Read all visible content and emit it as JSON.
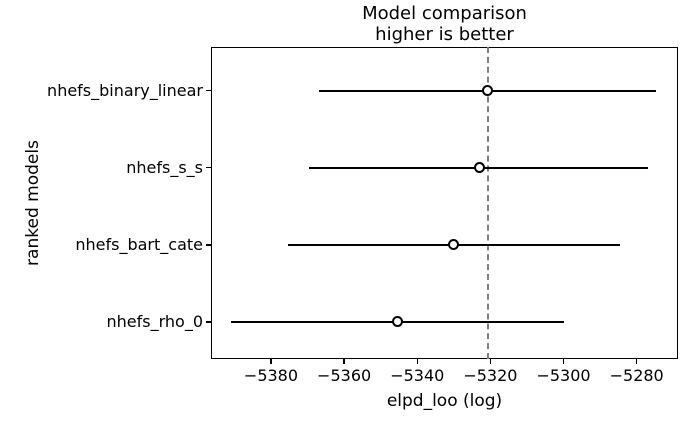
{
  "chart_data": {
    "type": "scatter",
    "subtype": "forest-errorbar-model-comparison",
    "title": "Model comparison",
    "subtitle": "higher is better",
    "xlabel": "elpd_loo (log)",
    "ylabel": "ranked models",
    "categories": [
      "nhefs_binary_linear",
      "nhefs_s_s",
      "nhefs_bart_cate",
      "nhefs_rho_0"
    ],
    "points": [
      {
        "elpd": -5320.7,
        "ci_low": -5366.9,
        "ci_high": -5274.6
      },
      {
        "elpd": -5323.0,
        "ci_low": -5369.5,
        "ci_high": -5277.0
      },
      {
        "elpd": -5330.1,
        "ci_low": -5375.3,
        "ci_high": -5284.5
      },
      {
        "elpd": -5345.5,
        "ci_low": -5390.8,
        "ci_high": -5299.8
      }
    ],
    "reference_line": {
      "value": -5320.7,
      "style": "dashed",
      "color": "#7f7f7f"
    },
    "xlim": [
      -5396.4,
      -5268.7
    ],
    "x_ticks": [
      -5380,
      -5360,
      -5340,
      -5320,
      -5300,
      -5280
    ],
    "x_tick_labels": [
      "−5380",
      "−5360",
      "−5340",
      "−5320",
      "−5300",
      "−5280"
    ],
    "grid": false,
    "legend": false,
    "marker": "open-circle",
    "colors": {
      "line": "#000000",
      "marker_fill": "#ffffff",
      "text": "#000000",
      "reference": "#7f7f7f",
      "background": "#ffffff"
    }
  }
}
